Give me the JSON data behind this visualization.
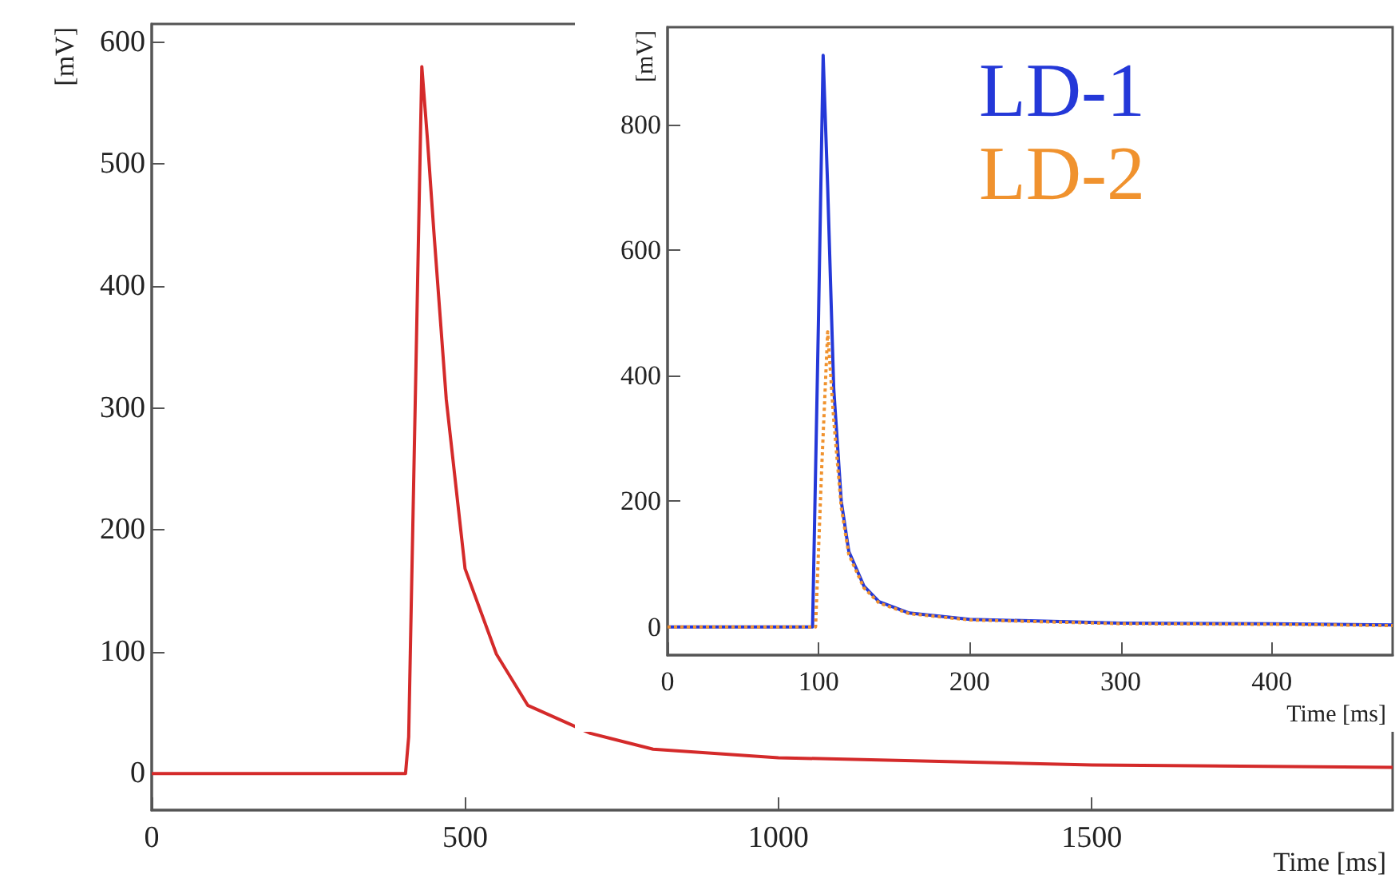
{
  "chart_data": [
    {
      "type": "line",
      "xlabel": "Time [ms]",
      "ylabel": "[mV]",
      "xlim": [
        0,
        1980
      ],
      "xticks": [
        0,
        500,
        1000,
        1500
      ],
      "ylim": [
        -30,
        615
      ],
      "yticks": [
        0,
        100,
        200,
        300,
        400,
        500,
        600
      ],
      "grid": false,
      "marker": "none",
      "legend": false,
      "series": [
        {
          "color": "#d42a2a",
          "line_style": "solid",
          "x": [
            0,
            405,
            410,
            431,
            440,
            450,
            470,
            500,
            550,
            600,
            700,
            800,
            1000,
            1500,
            1980
          ],
          "values": [
            0,
            0,
            30,
            580,
            520,
            446,
            307,
            168,
            98,
            56,
            33,
            20,
            13,
            7,
            5
          ]
        }
      ]
    },
    {
      "type": "line",
      "xlabel": "Time [ms]",
      "ylabel": "[mV]",
      "xlim": [
        0,
        480
      ],
      "xticks": [
        0,
        100,
        200,
        300,
        400
      ],
      "ylim": [
        -45,
        955
      ],
      "yticks": [
        0,
        200,
        400,
        600,
        800
      ],
      "grid": false,
      "marker": "none",
      "legend": "top right",
      "series": [
        {
          "name": "LD-1",
          "color": "#2438d8",
          "line_style": "solid",
          "x": [
            0,
            96,
            100,
            103,
            106,
            110,
            115,
            120,
            130,
            140,
            160,
            200,
            300,
            400,
            480
          ],
          "values": [
            0,
            0,
            500,
            910,
            700,
            380,
            200,
            120,
            65,
            40,
            22,
            12,
            6,
            5,
            3
          ]
        },
        {
          "name": "LD-2",
          "color": "#f0922e",
          "line_style": "dotted",
          "x": [
            0,
            98,
            102,
            106,
            110,
            115,
            120,
            130,
            140,
            160,
            200,
            300,
            400,
            480
          ],
          "values": [
            0,
            0,
            250,
            470,
            330,
            190,
            115,
            62,
            38,
            21,
            11,
            5,
            4,
            2
          ]
        }
      ]
    }
  ]
}
